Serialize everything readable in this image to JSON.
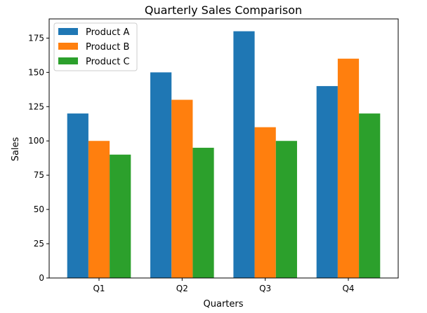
{
  "chart_data": {
    "type": "bar",
    "title": "Quarterly Sales Comparison",
    "xlabel": "Quarters",
    "ylabel": "Sales",
    "categories": [
      "Q1",
      "Q2",
      "Q3",
      "Q4"
    ],
    "series": [
      {
        "name": "Product A",
        "values": [
          120,
          150,
          180,
          140
        ],
        "color": "#1f77b4"
      },
      {
        "name": "Product B",
        "values": [
          100,
          130,
          110,
          160
        ],
        "color": "#ff7f0e"
      },
      {
        "name": "Product C",
        "values": [
          90,
          95,
          100,
          120
        ],
        "color": "#2ca02c"
      }
    ],
    "ylim": [
      0,
      189
    ],
    "yticks": [
      0,
      25,
      50,
      75,
      100,
      125,
      150,
      175
    ],
    "grid": false,
    "legend_position": "top-left"
  }
}
